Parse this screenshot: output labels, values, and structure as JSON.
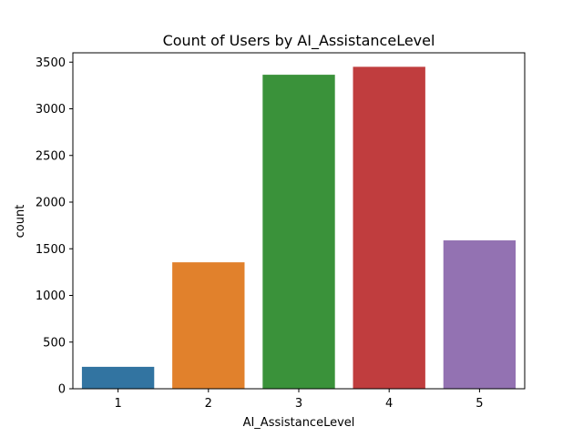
{
  "chart_data": {
    "type": "bar",
    "title": "Count of Users by AI_AssistanceLevel",
    "xlabel": "AI_AssistanceLevel",
    "ylabel": "count",
    "categories": [
      "1",
      "2",
      "3",
      "4",
      "5"
    ],
    "values": [
      235,
      1355,
      3365,
      3450,
      1590
    ],
    "ylim": [
      0,
      3600
    ],
    "yticks": [
      0,
      500,
      1000,
      1500,
      2000,
      2500,
      3000,
      3500
    ],
    "colors": [
      "#3274a1",
      "#e1812c",
      "#3a923a",
      "#c03d3e",
      "#9372b2"
    ],
    "grid": false,
    "legend": "none"
  }
}
